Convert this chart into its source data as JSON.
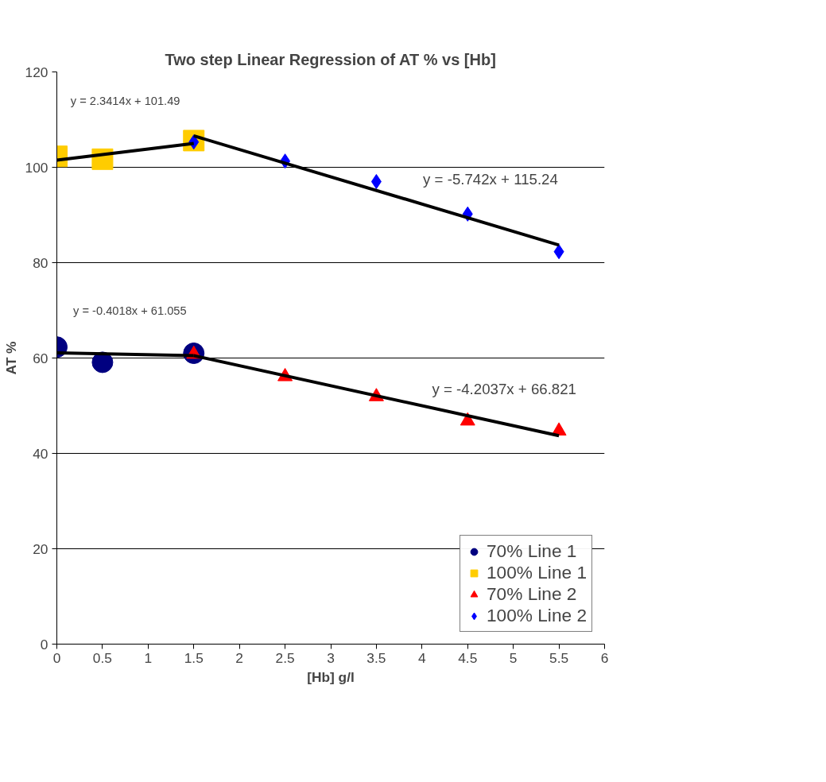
{
  "chart_data": {
    "type": "scatter",
    "title": "Two step Linear Regression of AT % vs [Hb]",
    "xlabel": "[Hb] g/l",
    "ylabel": "AT %",
    "xlim": [
      0,
      6
    ],
    "xticks": [
      0,
      0.5,
      1,
      1.5,
      2,
      2.5,
      3,
      3.5,
      4,
      4.5,
      5,
      5.5,
      6
    ],
    "ylim": [
      0,
      120
    ],
    "yticks": [
      0,
      20,
      40,
      60,
      80,
      100,
      120
    ],
    "grid": "y",
    "legend": "bottom right",
    "series": [
      {
        "name": "70% Line 1",
        "color": "#000080",
        "marker": "circle",
        "x": [
          0,
          0.5,
          1.5
        ],
        "values": [
          62.3,
          59.1,
          61.0
        ]
      },
      {
        "name": "100% Line 1",
        "color": "#ffcc00",
        "marker": "square",
        "x": [
          0,
          0.5,
          1.5
        ],
        "values": [
          102.3,
          101.7,
          105.6
        ]
      },
      {
        "name": "70% Line 2",
        "color": "#ff0000",
        "marker": "triangle",
        "x": [
          1.5,
          2.5,
          3.5,
          4.5,
          5.5
        ],
        "values": [
          60.8,
          56.1,
          51.9,
          46.8,
          44.7
        ]
      },
      {
        "name": "100% Line 2",
        "color": "#0000ff",
        "marker": "diamond",
        "x": [
          1.5,
          2.5,
          3.5,
          4.5,
          5.5
        ],
        "values": [
          105.3,
          101.3,
          97.0,
          90.2,
          82.3
        ]
      },
      {
        "type": "line",
        "color": "#000000",
        "x": [
          0,
          1.5
        ],
        "values": [
          61.1,
          60.5
        ]
      },
      {
        "type": "line",
        "color": "#000000",
        "x": [
          0,
          1.5
        ],
        "values": [
          101.5,
          105.0
        ]
      },
      {
        "type": "line",
        "color": "#000000",
        "x": [
          1.5,
          5.5
        ],
        "values": [
          60.5,
          43.7
        ]
      },
      {
        "type": "line",
        "color": "#000000",
        "x": [
          1.5,
          5.5
        ],
        "values": [
          106.6,
          83.7
        ]
      }
    ],
    "annotations": [
      "y = 2.3414x + 101.49",
      "y = -5.742x + 115.24",
      "y = -0.4018x + 61.055",
      "y = -4.2037x + 66.821"
    ]
  }
}
